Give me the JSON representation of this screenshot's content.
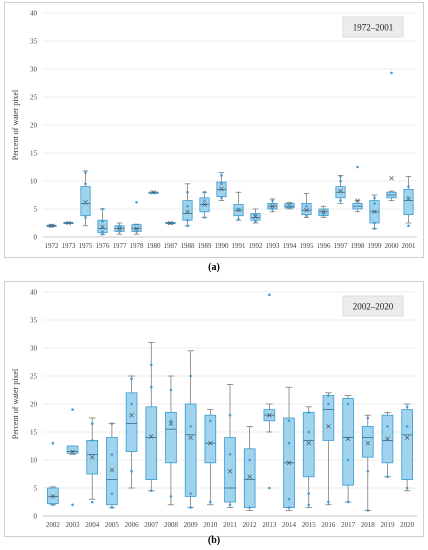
{
  "captions": {
    "a": "(a)",
    "b": "(b)"
  },
  "colors": {
    "box_fill": "#9fd3ee",
    "box_stroke": "#3a9bd0",
    "point": "#4a9ccf",
    "outlier": "#6aaed8",
    "grid": "#d9d9d9",
    "legend_bg": "#ececec"
  },
  "chart_data": [
    {
      "type": "boxplot",
      "panel": "a",
      "period_label": "1972–2001",
      "ylabel": "Percent of water pixel",
      "ylim": [
        0,
        40
      ],
      "yticks": [
        0,
        5,
        10,
        15,
        20,
        25,
        30,
        35,
        40
      ],
      "grid": true,
      "categories": [
        "1972",
        "1973",
        "1975",
        "1976",
        "1977",
        "1978",
        "1980",
        "1987",
        "1988",
        "1989",
        "1990",
        "1991",
        "1992",
        "1993",
        "1994",
        "1995",
        "1996",
        "1997",
        "1998",
        "1999",
        "2000",
        "2001"
      ],
      "boxes": [
        {
          "min": 1.8,
          "q1": 1.9,
          "median": 2.0,
          "q3": 2.1,
          "max": 2.2,
          "mean": 2.0,
          "points": []
        },
        {
          "min": 2.4,
          "q1": 2.5,
          "median": 2.5,
          "q3": 2.6,
          "max": 2.6,
          "mean": 2.5,
          "points": []
        },
        {
          "min": 2.0,
          "q1": 3.8,
          "median": 6.0,
          "q3": 9.0,
          "max": 11.8,
          "mean": 6.2,
          "points": [
            3.5,
            6.0,
            9.5,
            11.5
          ]
        },
        {
          "min": 0.5,
          "q1": 0.8,
          "median": 1.5,
          "q3": 3.0,
          "max": 5.0,
          "mean": 1.8,
          "points": [
            0.5,
            1.0,
            2.8,
            5.0
          ]
        },
        {
          "min": 0.5,
          "q1": 1.0,
          "median": 1.5,
          "q3": 2.0,
          "max": 2.5,
          "mean": 1.5,
          "points": [
            1.0,
            2.0
          ]
        },
        {
          "min": 0.5,
          "q1": 1.0,
          "median": 1.5,
          "q3": 2.2,
          "max": 2.3,
          "mean": 1.5,
          "points": [
            1.0,
            6.2
          ]
        },
        {
          "min": 8.0,
          "q1": 8.0,
          "median": 8.0,
          "q3": 8.0,
          "max": 8.0,
          "mean": 8.0,
          "points": []
        },
        {
          "min": 2.3,
          "q1": 2.4,
          "median": 2.5,
          "q3": 2.6,
          "max": 2.6,
          "mean": 2.5,
          "points": []
        },
        {
          "min": 2.0,
          "q1": 3.0,
          "median": 4.2,
          "q3": 6.5,
          "max": 9.5,
          "mean": 4.5,
          "points": [
            2.0,
            3.0,
            5.5,
            8.0
          ]
        },
        {
          "min": 3.5,
          "q1": 4.5,
          "median": 5.8,
          "q3": 7.0,
          "max": 8.0,
          "mean": 5.8,
          "points": [
            3.5,
            6.5,
            8.0
          ]
        },
        {
          "min": 6.5,
          "q1": 7.2,
          "median": 8.5,
          "q3": 9.8,
          "max": 11.5,
          "mean": 8.6,
          "points": [
            7.0,
            9.5,
            11.0
          ]
        },
        {
          "min": 3.0,
          "q1": 3.8,
          "median": 4.8,
          "q3": 5.8,
          "max": 8.0,
          "mean": 4.8,
          "points": [
            3.2,
            5.0
          ]
        },
        {
          "min": 2.5,
          "q1": 3.0,
          "median": 3.5,
          "q3": 4.2,
          "max": 5.0,
          "mean": 3.6,
          "points": [
            2.8,
            4.0
          ]
        },
        {
          "min": 4.5,
          "q1": 5.0,
          "median": 5.5,
          "q3": 6.0,
          "max": 6.8,
          "mean": 5.5,
          "points": [
            5.0,
            6.5
          ]
        },
        {
          "min": 5.0,
          "q1": 5.2,
          "median": 5.5,
          "q3": 6.0,
          "max": 6.2,
          "mean": 5.6,
          "points": [
            5.5
          ]
        },
        {
          "min": 3.5,
          "q1": 4.0,
          "median": 4.8,
          "q3": 6.0,
          "max": 7.8,
          "mean": 4.8,
          "points": [
            3.8,
            5.5
          ]
        },
        {
          "min": 3.5,
          "q1": 3.8,
          "median": 4.5,
          "q3": 5.0,
          "max": 5.5,
          "mean": 4.5,
          "points": [
            4.0
          ]
        },
        {
          "min": 6.0,
          "q1": 7.0,
          "median": 8.0,
          "q3": 9.0,
          "max": 11.0,
          "mean": 8.2,
          "points": [
            6.5,
            10.0,
            10.8
          ]
        },
        {
          "min": 4.5,
          "q1": 5.0,
          "median": 5.5,
          "q3": 6.0,
          "max": 6.5,
          "mean": 6.5,
          "points": [
            12.5
          ]
        },
        {
          "min": 1.5,
          "q1": 2.5,
          "median": 4.5,
          "q3": 6.5,
          "max": 7.5,
          "mean": 4.5,
          "points": [
            1.5,
            2.5,
            6.0,
            7.0
          ]
        },
        {
          "min": 6.5,
          "q1": 7.0,
          "median": 7.5,
          "q3": 8.0,
          "max": 8.2,
          "mean": 10.5,
          "points": [
            29.3
          ]
        },
        {
          "min": 2.5,
          "q1": 4.0,
          "median": 6.5,
          "q3": 8.5,
          "max": 10.8,
          "mean": 6.8,
          "points": [
            2.0,
            7.0,
            9.0
          ]
        }
      ]
    },
    {
      "type": "boxplot",
      "panel": "b",
      "period_label": "2002–2020",
      "ylabel": "Percent of water pixel",
      "ylim": [
        0,
        40
      ],
      "yticks": [
        0,
        5,
        10,
        15,
        20,
        25,
        30,
        35,
        40
      ],
      "grid": true,
      "categories": [
        "2002",
        "2003",
        "2004",
        "2005",
        "2006",
        "2007",
        "2008",
        "2009",
        "2010",
        "2011",
        "2012",
        "2013",
        "2014",
        "2015",
        "2016",
        "2017",
        "2018",
        "2019",
        "2020"
      ],
      "boxes": [
        {
          "min": 2.0,
          "q1": 2.2,
          "median": 3.5,
          "q3": 5.0,
          "max": 5.2,
          "mean": 3.5,
          "points": [
            13.0,
            2.0
          ]
        },
        {
          "min": 11.0,
          "q1": 11.2,
          "median": 11.5,
          "q3": 12.5,
          "max": 12.5,
          "mean": 11.5,
          "points": [
            19.0,
            2.0
          ]
        },
        {
          "min": 3.0,
          "q1": 7.5,
          "median": 11.0,
          "q3": 13.5,
          "max": 17.5,
          "mean": 10.5,
          "points": [
            2.5,
            13.5,
            16.5
          ]
        },
        {
          "min": 1.5,
          "q1": 2.0,
          "median": 6.5,
          "q3": 14.0,
          "max": 16.5,
          "mean": 8.2,
          "points": [
            1.5,
            4.0,
            11.0,
            16.5
          ]
        },
        {
          "min": 5.0,
          "q1": 11.5,
          "median": 16.5,
          "q3": 22.0,
          "max": 25.0,
          "mean": 18.0,
          "points": [
            8.0,
            20.0,
            24.5
          ]
        },
        {
          "min": 4.5,
          "q1": 6.5,
          "median": 14.0,
          "q3": 19.5,
          "max": 31.0,
          "mean": 14.2,
          "points": [
            4.5,
            23.0,
            27.0
          ]
        },
        {
          "min": 2.0,
          "q1": 9.5,
          "median": 15.5,
          "q3": 18.5,
          "max": 25.0,
          "mean": 16.5,
          "points": [
            3.5,
            17.0,
            22.5
          ]
        },
        {
          "min": 1.5,
          "q1": 3.5,
          "median": 14.5,
          "q3": 20.0,
          "max": 29.5,
          "mean": 14.0,
          "points": [
            1.5,
            4.0,
            16.0,
            25.0
          ]
        },
        {
          "min": 2.0,
          "q1": 9.5,
          "median": 13.0,
          "q3": 18.0,
          "max": 19.0,
          "mean": 13.0,
          "points": [
            2.5,
            17.0
          ]
        },
        {
          "min": 1.5,
          "q1": 2.5,
          "median": 5.0,
          "q3": 14.0,
          "max": 23.5,
          "mean": 8.0,
          "points": [
            2.0,
            11.0,
            18.0
          ]
        },
        {
          "min": 1.0,
          "q1": 1.5,
          "median": 6.5,
          "q3": 12.0,
          "max": 16.0,
          "mean": 7.0,
          "points": [
            1.5,
            10.0
          ]
        },
        {
          "min": 15.0,
          "q1": 17.0,
          "median": 18.0,
          "q3": 19.0,
          "max": 20.0,
          "mean": 18.0,
          "points": [
            39.5,
            5.0
          ]
        },
        {
          "min": 1.0,
          "q1": 1.5,
          "median": 9.5,
          "q3": 17.5,
          "max": 23.0,
          "mean": 9.5,
          "points": [
            1.5,
            3.0,
            13.0,
            17.0
          ]
        },
        {
          "min": 1.5,
          "q1": 7.0,
          "median": 13.5,
          "q3": 18.5,
          "max": 19.5,
          "mean": 13.0,
          "points": [
            2.0,
            4.0,
            15.0,
            18.5
          ]
        },
        {
          "min": 2.0,
          "q1": 13.5,
          "median": 19.0,
          "q3": 21.5,
          "max": 22.0,
          "mean": 16.0,
          "points": [
            2.5,
            20.0,
            21.5
          ]
        },
        {
          "min": 2.5,
          "q1": 5.5,
          "median": 14.0,
          "q3": 21.0,
          "max": 21.5,
          "mean": 13.8,
          "points": [
            2.5,
            10.0,
            20.0
          ]
        },
        {
          "min": 1.0,
          "q1": 10.5,
          "median": 14.0,
          "q3": 16.0,
          "max": 18.0,
          "mean": 13.0,
          "points": [
            1.0,
            8.0,
            17.5
          ]
        },
        {
          "min": 7.0,
          "q1": 9.5,
          "median": 13.5,
          "q3": 18.0,
          "max": 18.5,
          "mean": 13.8,
          "points": [
            7.0,
            16.0
          ]
        },
        {
          "min": 4.5,
          "q1": 6.5,
          "median": 14.5,
          "q3": 19.0,
          "max": 20.0,
          "mean": 14.0,
          "points": [
            5.0,
            16.0,
            19.5
          ]
        }
      ]
    }
  ]
}
